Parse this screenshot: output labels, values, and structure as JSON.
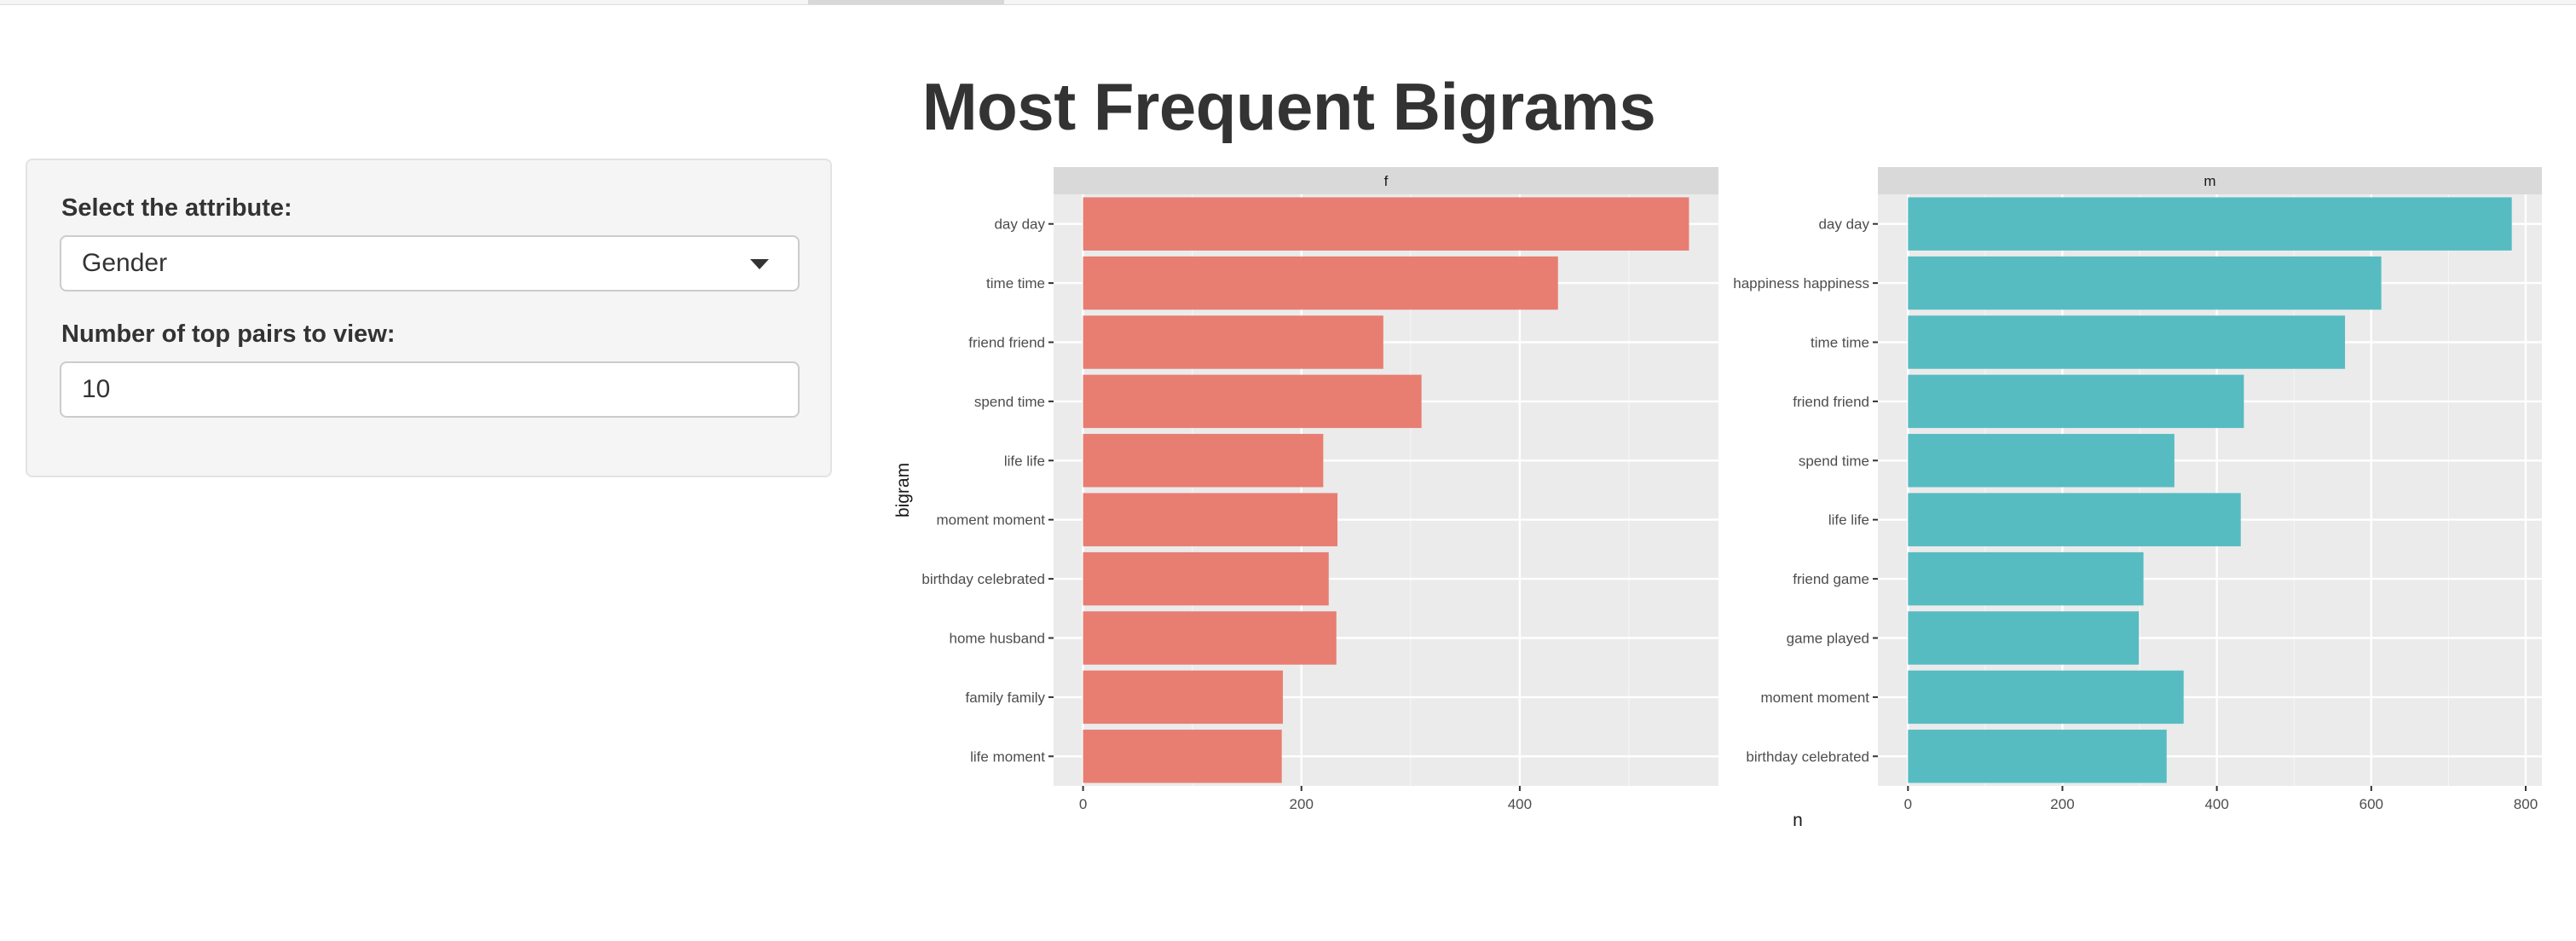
{
  "header": {
    "title": "Most Frequent Bigrams"
  },
  "controls": {
    "attribute_label": "Select the attribute:",
    "attribute_value": "Gender",
    "pairs_label": "Number of top pairs to view:",
    "pairs_value": "10"
  },
  "colors": {
    "f": "#E87D72",
    "m": "#56BCC2",
    "panel": "#EBEBEB",
    "strip": "#D9D9D9",
    "grid": "#FFFFFF"
  },
  "chart_data": {
    "type": "bar",
    "orientation": "horizontal",
    "xlabel": "n",
    "ylabel": "bigram",
    "panels": [
      {
        "facet": "f",
        "categories": [
          "day day",
          "time time",
          "friend friend",
          "spend time",
          "life life",
          "moment moment",
          "birthday celebrated",
          "home husband",
          "family family",
          "life moment"
        ],
        "values": [
          555,
          435,
          275,
          310,
          220,
          233,
          225,
          232,
          183,
          182
        ],
        "xlim": [
          -27,
          582
        ],
        "ticks": [
          0,
          200,
          400
        ]
      },
      {
        "facet": "m",
        "categories": [
          "day day",
          "happiness happiness",
          "time time",
          "friend friend",
          "spend time",
          "life life",
          "friend game",
          "game played",
          "moment moment",
          "birthday celebrated"
        ],
        "values": [
          782,
          613,
          566,
          435,
          345,
          431,
          305,
          299,
          357,
          335
        ],
        "xlim": [
          -39,
          821
        ],
        "ticks": [
          0,
          200,
          400,
          600,
          800
        ]
      }
    ]
  }
}
